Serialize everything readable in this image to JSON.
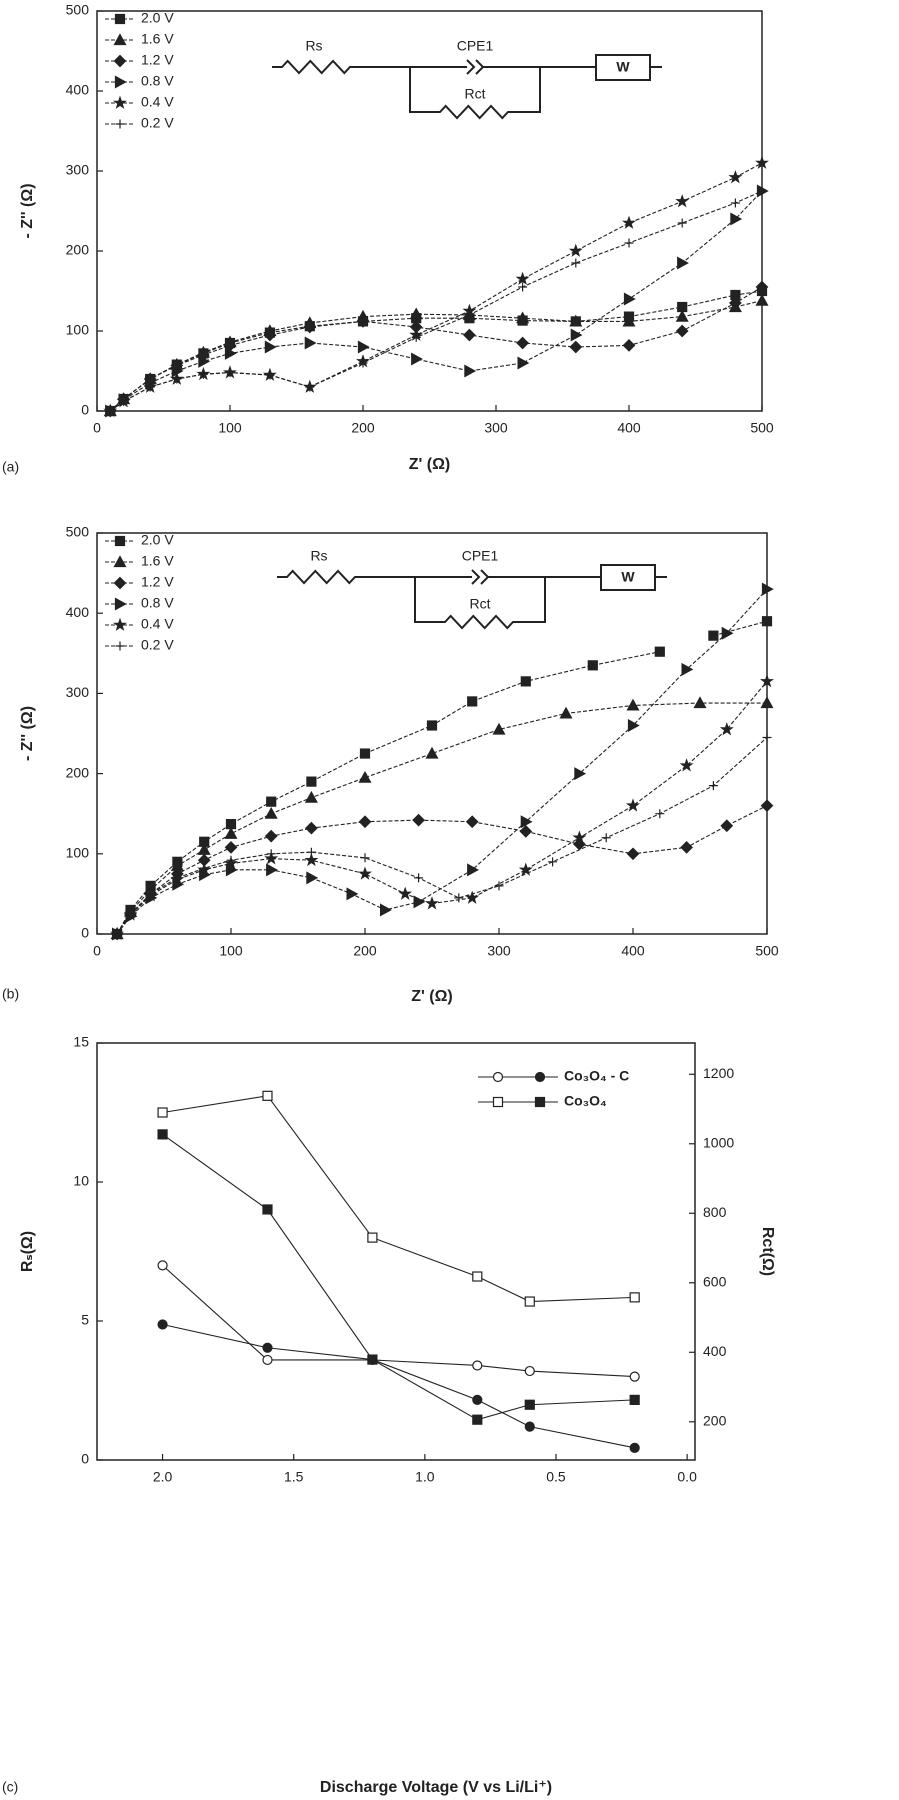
{
  "chart_data": [
    {
      "type": "line",
      "panel_label": "(a)",
      "xlabel": "Z' (Ω)",
      "ylabel": "- Z'' (Ω)",
      "color": "#222",
      "xlim": [
        0,
        500
      ],
      "ylim": [
        0,
        500
      ],
      "xticks": [
        0,
        100,
        200,
        300,
        400,
        500
      ],
      "yticks": [
        0,
        100,
        200,
        300,
        400,
        500
      ],
      "circuit": {
        "rs": "Rs",
        "cpe": "CPE1",
        "rct": "Rct",
        "w": "W"
      },
      "series": [
        {
          "name": "2.0 V",
          "marker": "square",
          "x": [
            10,
            20,
            40,
            60,
            80,
            100,
            130,
            160,
            200,
            240,
            280,
            320,
            360,
            400,
            440,
            480,
            500
          ],
          "values": [
            0,
            15,
            40,
            58,
            72,
            85,
            98,
            106,
            112,
            116,
            116,
            113,
            112,
            118,
            130,
            145,
            150
          ]
        },
        {
          "name": "1.6 V",
          "marker": "triangle",
          "x": [
            10,
            20,
            40,
            60,
            80,
            100,
            130,
            160,
            200,
            240,
            280,
            320,
            360,
            400,
            440,
            480,
            500
          ],
          "values": [
            0,
            15,
            40,
            58,
            73,
            86,
            100,
            110,
            118,
            121,
            120,
            116,
            112,
            112,
            118,
            130,
            138
          ]
        },
        {
          "name": "1.2 V",
          "marker": "diamond",
          "x": [
            10,
            20,
            40,
            60,
            80,
            100,
            130,
            160,
            200,
            240,
            280,
            320,
            360,
            400,
            440,
            480,
            500
          ],
          "values": [
            0,
            15,
            40,
            57,
            70,
            82,
            95,
            105,
            112,
            105,
            95,
            85,
            80,
            82,
            100,
            135,
            155
          ]
        },
        {
          "name": "0.8 V",
          "marker": "triangle-right",
          "x": [
            10,
            20,
            40,
            60,
            80,
            100,
            130,
            160,
            200,
            240,
            280,
            320,
            360,
            400,
            440,
            480,
            500
          ],
          "values": [
            0,
            14,
            35,
            50,
            62,
            72,
            80,
            85,
            80,
            65,
            50,
            60,
            95,
            140,
            185,
            240,
            275
          ]
        },
        {
          "name": "0.4 V",
          "marker": "star",
          "x": [
            10,
            20,
            40,
            60,
            80,
            100,
            130,
            160,
            200,
            240,
            280,
            320,
            360,
            400,
            440,
            480,
            500
          ],
          "values": [
            0,
            12,
            30,
            40,
            46,
            48,
            45,
            30,
            62,
            95,
            125,
            165,
            200,
            235,
            262,
            292,
            310
          ]
        },
        {
          "name": "0.2 V",
          "marker": "plus",
          "x": [
            10,
            20,
            40,
            60,
            80,
            100,
            130,
            160,
            200,
            240,
            280,
            320,
            360,
            400,
            440,
            480,
            500
          ],
          "values": [
            0,
            12,
            30,
            40,
            46,
            48,
            45,
            30,
            60,
            92,
            120,
            155,
            185,
            210,
            235,
            260,
            275
          ]
        }
      ]
    },
    {
      "type": "line",
      "panel_label": "(b)",
      "xlabel": "Z' (Ω)",
      "ylabel": "- Z'' (Ω)",
      "color": "#222",
      "xlim": [
        0,
        500
      ],
      "ylim": [
        0,
        500
      ],
      "xticks": [
        0,
        100,
        200,
        300,
        400,
        500
      ],
      "yticks": [
        0,
        100,
        200,
        300,
        400,
        500
      ],
      "circuit": {
        "rs": "Rs",
        "cpe": "CPE1",
        "rct": "Rct",
        "w": "W"
      },
      "series": [
        {
          "name": "2.0 V",
          "marker": "square",
          "x": [
            15,
            25,
            40,
            60,
            80,
            100,
            130,
            160,
            200,
            250,
            280,
            320,
            370,
            420,
            440,
            460,
            500
          ],
          "values": [
            0,
            30,
            60,
            90,
            115,
            137,
            165,
            190,
            225,
            260,
            290,
            315,
            335,
            352,
            null,
            372,
            390
          ]
        },
        {
          "name": "1.6 V",
          "marker": "triangle",
          "x": [
            15,
            25,
            40,
            60,
            80,
            100,
            130,
            160,
            200,
            250,
            300,
            350,
            400,
            450,
            500
          ],
          "values": [
            0,
            28,
            55,
            85,
            105,
            125,
            150,
            170,
            195,
            225,
            255,
            275,
            285,
            288,
            288
          ]
        },
        {
          "name": "1.2 V",
          "marker": "diamond",
          "x": [
            15,
            25,
            40,
            60,
            80,
            100,
            130,
            160,
            200,
            240,
            280,
            320,
            360,
            400,
            440,
            470,
            500
          ],
          "values": [
            0,
            25,
            50,
            75,
            92,
            108,
            122,
            132,
            140,
            142,
            140,
            128,
            112,
            100,
            108,
            135,
            160
          ]
        },
        {
          "name": "0.8 V",
          "marker": "triangle-right",
          "x": [
            15,
            25,
            40,
            60,
            80,
            100,
            130,
            160,
            190,
            215,
            240,
            280,
            320,
            360,
            400,
            440,
            470,
            500
          ],
          "values": [
            0,
            22,
            45,
            62,
            74,
            80,
            80,
            70,
            50,
            30,
            40,
            80,
            140,
            200,
            260,
            330,
            375,
            430
          ]
        },
        {
          "name": "0.4 V",
          "marker": "star",
          "x": [
            15,
            25,
            40,
            60,
            80,
            100,
            130,
            160,
            200,
            230,
            250,
            280,
            320,
            360,
            400,
            440,
            470,
            500
          ],
          "values": [
            0,
            24,
            48,
            68,
            80,
            88,
            94,
            92,
            75,
            50,
            38,
            45,
            80,
            120,
            160,
            210,
            255,
            315
          ]
        },
        {
          "name": "0.2 V",
          "marker": "plus",
          "x": [
            15,
            25,
            40,
            60,
            80,
            100,
            130,
            160,
            200,
            240,
            270,
            300,
            340,
            380,
            420,
            460,
            500
          ],
          "values": [
            0,
            25,
            50,
            70,
            82,
            92,
            100,
            102,
            95,
            70,
            45,
            60,
            90,
            120,
            150,
            185,
            245
          ]
        }
      ]
    },
    {
      "type": "line",
      "panel_label": "(c)",
      "xlabel": "Discharge Voltage (V vs Li/Li⁺)",
      "ylabel": "Rₛ(Ω)",
      "y2label": "Rct(Ω)",
      "color": "#222",
      "xlim": [
        2.25,
        -0.03
      ],
      "ylim": [
        0,
        15
      ],
      "y2lim": [
        90,
        1290
      ],
      "xticks": [
        {
          "value": 2,
          "label": "2.0"
        },
        {
          "value": 1.5,
          "label": "1.5"
        },
        {
          "value": 1,
          "label": "1.0"
        },
        {
          "value": 0.5,
          "label": "0.5"
        },
        {
          "value": 0,
          "label": "0.0"
        }
      ],
      "yticks": [
        0,
        5,
        10,
        15
      ],
      "y2ticks": [
        200,
        400,
        600,
        800,
        1000,
        1200
      ],
      "x": [
        2.0,
        1.6,
        1.2,
        0.8,
        0.6,
        0.2
      ],
      "series": [
        {
          "name": "Co₃O₄ - C",
          "marker": "circle",
          "values": [
            7.0,
            3.6,
            3.6,
            3.4,
            3.2,
            3.0
          ],
          "values_y2": [
            480,
            413,
            379,
            263,
            186,
            125
          ]
        },
        {
          "name": "Co₃O₄",
          "marker": "square",
          "values": [
            12.5,
            13.1,
            8.0,
            6.6,
            5.7,
            5.85
          ],
          "values_y2": [
            1027,
            811,
            379,
            206,
            249,
            263
          ]
        }
      ]
    }
  ]
}
